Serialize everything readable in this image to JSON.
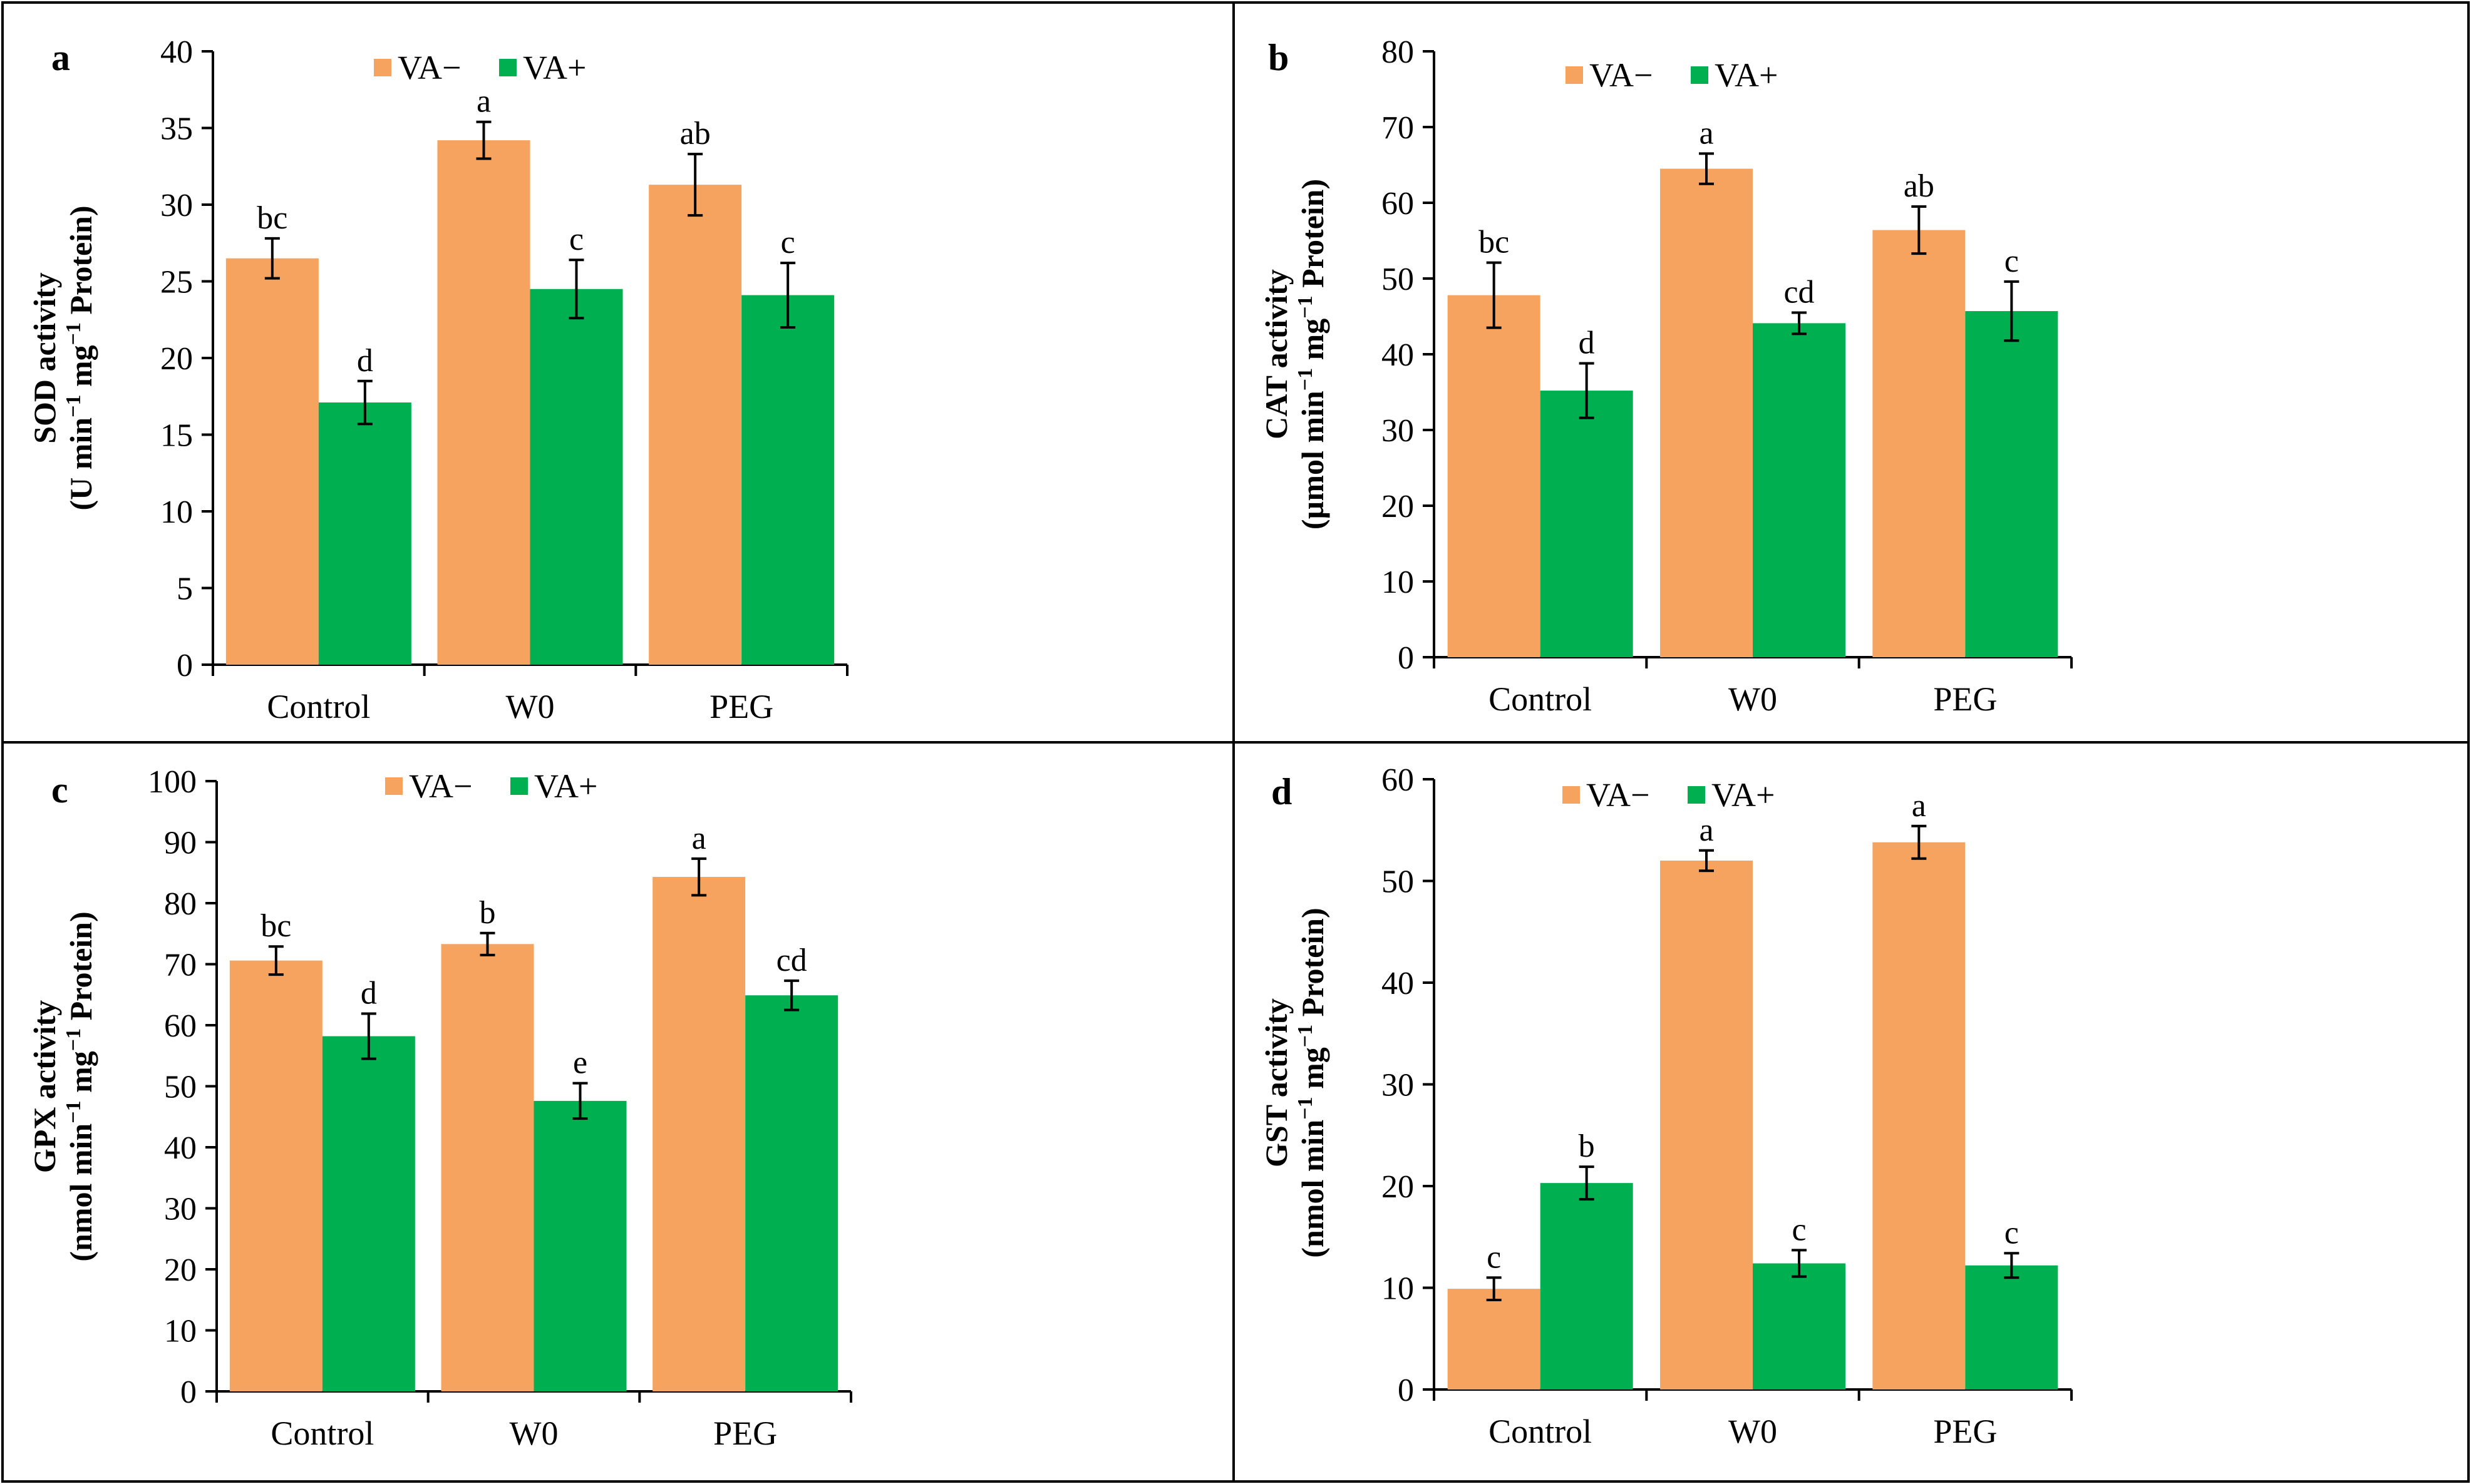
{
  "colors": {
    "va_minus": "#F5A35F",
    "va_plus": "#00B050",
    "axis": "#000000",
    "frame": "#000000"
  },
  "chart_data": [
    {
      "type": "bar",
      "panel": "a",
      "ylabel_line1": "SOD activity",
      "ylabel_line2_pre": "(U min",
      "ylabel_mid": " mg",
      "ylabel_post": " Protein)",
      "ylabel_sup": "−1",
      "categories": [
        "Control",
        "W0",
        "PEG"
      ],
      "ylim": [
        0,
        40
      ],
      "yticks": [
        0,
        5,
        10,
        15,
        20,
        25,
        30,
        35,
        40
      ],
      "legend": [
        "VA−",
        "VA+"
      ],
      "series": [
        {
          "name": "VA−",
          "values": [
            26.5,
            34.2,
            31.3
          ],
          "errors": [
            1.3,
            1.2,
            2.0
          ],
          "letters": [
            "bc",
            "a",
            "ab"
          ]
        },
        {
          "name": "VA+",
          "values": [
            17.1,
            24.5,
            24.1
          ],
          "errors": [
            1.4,
            1.9,
            2.1
          ],
          "letters": [
            "d",
            "c",
            "c"
          ]
        }
      ]
    },
    {
      "type": "bar",
      "panel": "b",
      "ylabel_line1": "CAT activity",
      "ylabel_line2_pre": "(µmol min",
      "ylabel_mid": " mg",
      "ylabel_post": " Protein)",
      "ylabel_sup": "−1",
      "categories": [
        "Control",
        "W0",
        "PEG"
      ],
      "ylim": [
        0,
        80
      ],
      "yticks": [
        0,
        10,
        20,
        30,
        40,
        50,
        60,
        70,
        80
      ],
      "legend": [
        "VA−",
        "VA+"
      ],
      "series": [
        {
          "name": "VA−",
          "values": [
            47.8,
            64.5,
            56.4
          ],
          "errors": [
            4.3,
            2.0,
            3.1
          ],
          "letters": [
            "bc",
            "a",
            "ab"
          ]
        },
        {
          "name": "VA+",
          "values": [
            35.2,
            44.1,
            45.7
          ],
          "errors": [
            3.6,
            1.4,
            3.9
          ],
          "letters": [
            "d",
            "cd",
            "c"
          ]
        }
      ]
    },
    {
      "type": "bar",
      "panel": "c",
      "ylabel_line1": "GPX activity",
      "ylabel_line2_pre": "(nmol min",
      "ylabel_mid": " mg",
      "ylabel_post": " Protein)",
      "ylabel_sup": "−1",
      "categories": [
        "Control",
        "W0",
        "PEG"
      ],
      "ylim": [
        0,
        100
      ],
      "yticks": [
        0,
        10,
        20,
        30,
        40,
        50,
        60,
        70,
        80,
        90,
        100
      ],
      "legend": [
        "VA−",
        "VA+"
      ],
      "series": [
        {
          "name": "VA−",
          "values": [
            70.6,
            73.3,
            84.3
          ],
          "errors": [
            2.3,
            1.8,
            3.0
          ],
          "letters": [
            "bc",
            "b",
            "a"
          ]
        },
        {
          "name": "VA+",
          "values": [
            58.2,
            47.6,
            64.9
          ],
          "errors": [
            3.7,
            2.9,
            2.4
          ],
          "letters": [
            "d",
            "e",
            "cd"
          ]
        }
      ]
    },
    {
      "type": "bar",
      "panel": "d",
      "ylabel_line1": "GST activity",
      "ylabel_line2_pre": "(nmol min",
      "ylabel_mid": " mg",
      "ylabel_post": " Protein)",
      "ylabel_sup": "−1",
      "categories": [
        "Control",
        "W0",
        "PEG"
      ],
      "ylim": [
        0,
        60
      ],
      "yticks": [
        0,
        10,
        20,
        30,
        40,
        50,
        60
      ],
      "legend": [
        "VA−",
        "VA+"
      ],
      "series": [
        {
          "name": "VA−",
          "values": [
            9.9,
            52.0,
            53.8
          ],
          "errors": [
            1.1,
            1.0,
            1.6
          ],
          "letters": [
            "c",
            "a",
            "a"
          ]
        },
        {
          "name": "VA+",
          "values": [
            20.3,
            12.4,
            12.2
          ],
          "errors": [
            1.6,
            1.3,
            1.2
          ],
          "letters": [
            "b",
            "c",
            "c"
          ]
        }
      ]
    }
  ]
}
